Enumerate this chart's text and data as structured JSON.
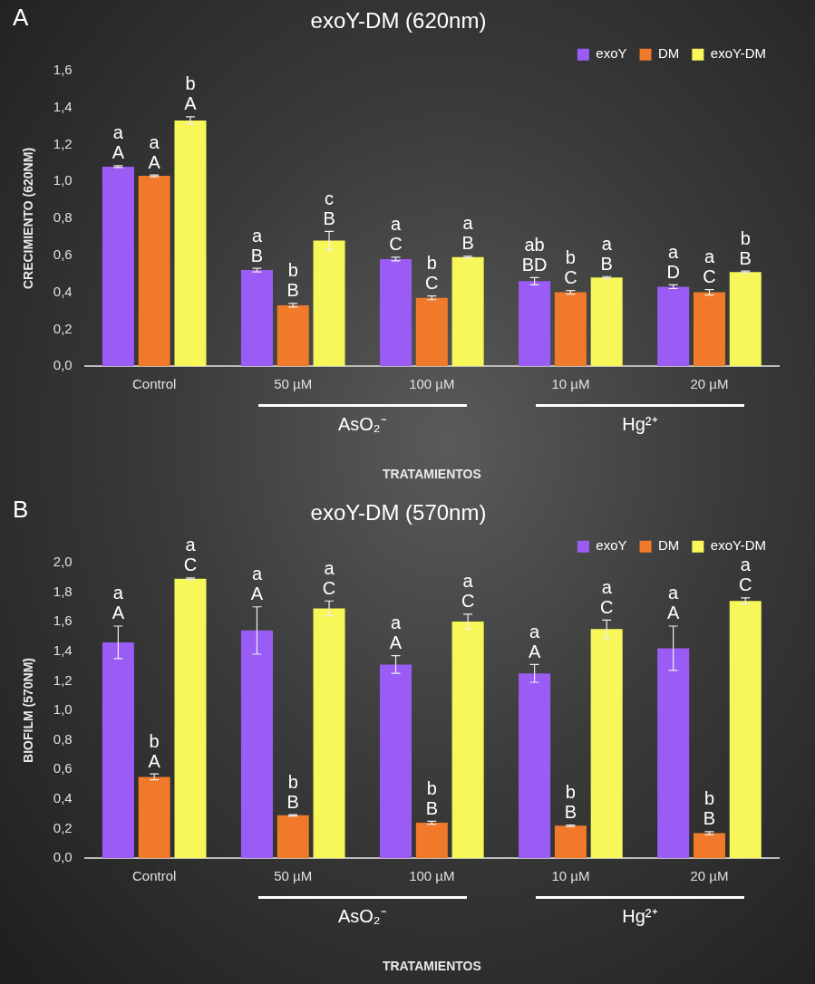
{
  "chart_data": [
    {
      "type": "bar",
      "title": "exoY-DM (620nm)",
      "xlabel": "TRATAMIENTOS",
      "ylabel": "CRECIMIENTO (620NM)",
      "categories": [
        "Control",
        "50 µM",
        "100 µM",
        "10 µM",
        "20 µM"
      ],
      "series": [
        {
          "name": "exoY",
          "color": "#9b5cf6",
          "values": [
            1.08,
            0.52,
            0.58,
            0.46,
            0.43
          ],
          "errors": [
            0.005,
            0.01,
            0.01,
            0.02,
            0.01
          ],
          "value_labels": [
            "a\nA",
            "a\nB",
            "a\nC",
            "ab\nBD",
            "a\nD"
          ]
        },
        {
          "name": "DM",
          "color": "#f07a2a",
          "values": [
            1.03,
            0.33,
            0.37,
            0.4,
            0.4
          ],
          "errors": [
            0.005,
            0.01,
            0.01,
            0.01,
            0.015
          ],
          "value_labels": [
            "a\nA",
            "b\nB",
            "b\nC",
            "b\nC",
            "a\nC"
          ]
        },
        {
          "name": "exoY-DM",
          "color": "#f7f75a",
          "values": [
            1.33,
            0.68,
            0.59,
            0.48,
            0.51
          ],
          "errors": [
            0.02,
            0.05,
            0.005,
            0.005,
            0.005
          ],
          "value_labels": [
            "b\nA",
            "c\nB",
            "a\nB",
            "a\nB",
            "b\nB"
          ]
        }
      ],
      "ylim": [
        0,
        1.6
      ],
      "yticks": [
        {
          "value": 0,
          "label": "0,0"
        },
        {
          "value": 0.2,
          "label": "0,2"
        },
        {
          "value": 0.4,
          "label": "0,4"
        },
        {
          "value": 0.6,
          "label": "0,6"
        },
        {
          "value": 0.8,
          "label": "0,8"
        },
        {
          "value": 1.0,
          "label": "1,0"
        },
        {
          "value": 1.2,
          "label": "1,2"
        },
        {
          "value": 1.4,
          "label": "1,4"
        },
        {
          "value": 1.6,
          "label": "1,6"
        }
      ],
      "grid": false,
      "legend": "top right",
      "annotations": [
        "A",
        "AsO₂⁻",
        "Hg²⁺"
      ]
    },
    {
      "type": "bar",
      "title": "exoY-DM (570nm)",
      "xlabel": "TRATAMIENTOS",
      "ylabel": "BIOFILM (570NM)",
      "categories": [
        "Control",
        "50 µM",
        "100 µM",
        "10 µM",
        "20 µM"
      ],
      "series": [
        {
          "name": "exoY",
          "color": "#9b5cf6",
          "values": [
            1.46,
            1.54,
            1.31,
            1.25,
            1.42
          ],
          "errors": [
            0.11,
            0.16,
            0.06,
            0.06,
            0.15
          ],
          "value_labels": [
            "a\nA",
            "a\nA",
            "a\nA",
            "a\nA",
            "a\nA"
          ]
        },
        {
          "name": "DM",
          "color": "#f07a2a",
          "values": [
            0.55,
            0.29,
            0.24,
            0.22,
            0.17
          ],
          "errors": [
            0.02,
            0.005,
            0.01,
            0.005,
            0.01
          ],
          "value_labels": [
            "b\nA",
            "b\nB",
            "b\nB",
            "b\nB",
            "b\nB"
          ]
        },
        {
          "name": "exoY-DM",
          "color": "#f7f75a",
          "values": [
            1.89,
            1.69,
            1.6,
            1.55,
            1.74
          ],
          "errors": [
            0.005,
            0.05,
            0.05,
            0.06,
            0.02
          ],
          "value_labels": [
            "a\nC",
            "a\nC",
            "a\nC",
            "a\nC",
            "a\nC"
          ]
        }
      ],
      "ylim": [
        0,
        2.0
      ],
      "yticks": [
        {
          "value": 0,
          "label": "0,0"
        },
        {
          "value": 0.2,
          "label": "0,2"
        },
        {
          "value": 0.4,
          "label": "0,4"
        },
        {
          "value": 0.6,
          "label": "0,6"
        },
        {
          "value": 0.8,
          "label": "0,8"
        },
        {
          "value": 1.0,
          "label": "1,0"
        },
        {
          "value": 1.2,
          "label": "1,2"
        },
        {
          "value": 1.4,
          "label": "1,4"
        },
        {
          "value": 1.6,
          "label": "1,6"
        },
        {
          "value": 1.8,
          "label": "1,8"
        },
        {
          "value": 2.0,
          "label": "2,0"
        }
      ],
      "grid": false,
      "legend": "top right",
      "annotations": [
        "B",
        "AsO₂⁻",
        "Hg²⁺"
      ]
    }
  ]
}
